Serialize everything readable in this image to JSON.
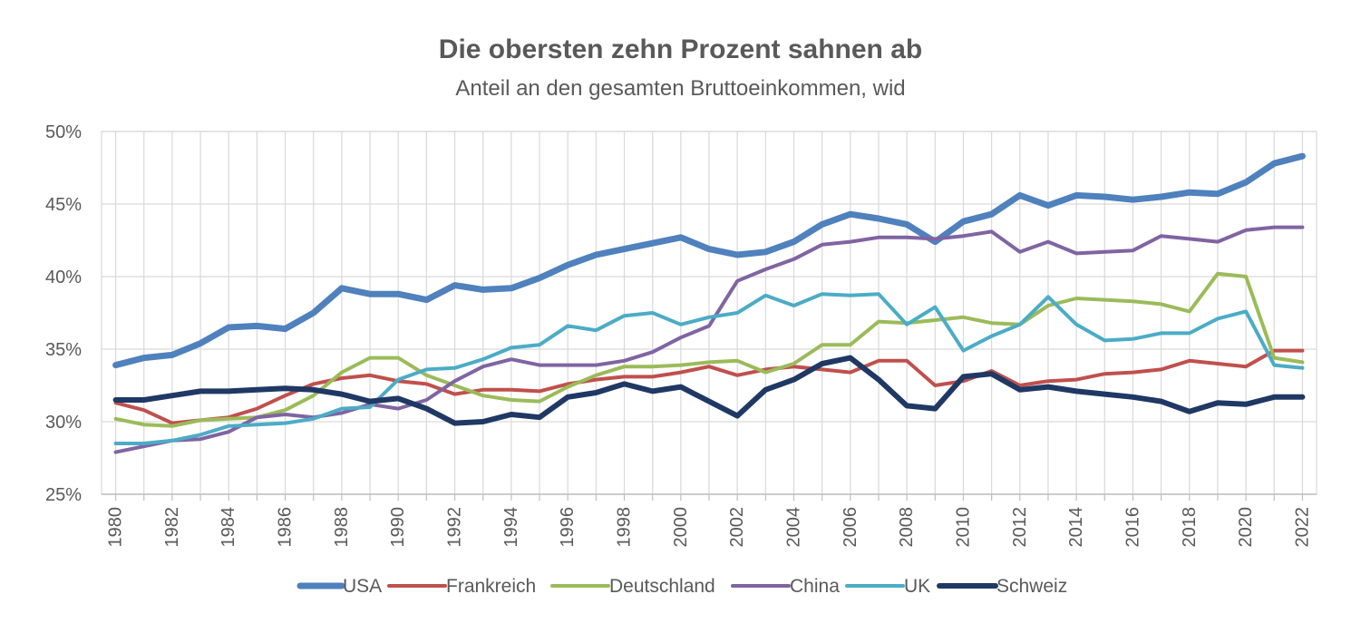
{
  "chart_data": {
    "type": "line",
    "title": "Die obersten zehn Prozent sahnen ab",
    "subtitle": "Anteil an den gesamten Bruttoeinkommen, wid",
    "xlabel": "",
    "ylabel": "",
    "x": [
      1980,
      1981,
      1982,
      1983,
      1984,
      1985,
      1986,
      1987,
      1988,
      1989,
      1990,
      1991,
      1992,
      1993,
      1994,
      1995,
      1996,
      1997,
      1998,
      1999,
      2000,
      2001,
      2002,
      2003,
      2004,
      2005,
      2006,
      2007,
      2008,
      2009,
      2010,
      2011,
      2012,
      2013,
      2014,
      2015,
      2016,
      2017,
      2018,
      2019,
      2020,
      2021,
      2022
    ],
    "xticks": [
      "1980",
      "1982",
      "1984",
      "1986",
      "1988",
      "1990",
      "1992",
      "1994",
      "1996",
      "1998",
      "2000",
      "2002",
      "2004",
      "2006",
      "2008",
      "2010",
      "2012",
      "2014",
      "2016",
      "2018",
      "2020",
      "2022"
    ],
    "ylim": [
      25,
      50
    ],
    "yticks": [
      25,
      30,
      35,
      40,
      45,
      50
    ],
    "ytick_labels": [
      "25%",
      "30%",
      "35%",
      "40%",
      "45%",
      "50%"
    ],
    "grid": true,
    "legend_position": "bottom",
    "series": [
      {
        "name": "USA",
        "color": "#4f81bd",
        "width": 7,
        "values": [
          33.9,
          34.4,
          34.6,
          35.4,
          36.5,
          36.6,
          36.4,
          37.5,
          39.2,
          38.8,
          38.8,
          38.4,
          39.4,
          39.1,
          39.2,
          39.9,
          40.8,
          41.5,
          41.9,
          42.3,
          42.7,
          41.9,
          41.5,
          41.7,
          42.4,
          43.6,
          44.3,
          44.0,
          43.6,
          42.4,
          43.8,
          44.3,
          45.6,
          44.9,
          45.6,
          45.5,
          45.3,
          45.5,
          45.8,
          45.7,
          46.5,
          47.8,
          48.3
        ]
      },
      {
        "name": "Frankreich",
        "color": "#c0504d",
        "width": 4,
        "values": [
          31.3,
          30.8,
          29.9,
          30.1,
          30.3,
          30.9,
          31.8,
          32.6,
          33.0,
          33.2,
          32.8,
          32.6,
          31.9,
          32.2,
          32.2,
          32.1,
          32.6,
          32.9,
          33.1,
          33.1,
          33.4,
          33.8,
          33.2,
          33.6,
          33.8,
          33.6,
          33.4,
          34.2,
          34.2,
          32.5,
          32.8,
          33.5,
          32.5,
          32.8,
          32.9,
          33.3,
          33.4,
          33.6,
          34.2,
          34.0,
          33.8,
          34.9,
          34.9
        ]
      },
      {
        "name": "Deutschland",
        "color": "#9bbb59",
        "width": 4,
        "values": [
          30.2,
          29.8,
          29.7,
          30.1,
          30.2,
          30.3,
          30.8,
          31.8,
          33.4,
          34.4,
          34.4,
          33.2,
          32.5,
          31.8,
          31.5,
          31.4,
          32.4,
          33.2,
          33.8,
          33.8,
          33.9,
          34.1,
          34.2,
          33.4,
          34.0,
          35.3,
          35.3,
          36.9,
          36.8,
          37.0,
          37.2,
          36.8,
          36.7,
          38.0,
          38.5,
          38.4,
          38.3,
          38.1,
          37.6,
          40.2,
          40.0,
          34.4,
          34.1
        ]
      },
      {
        "name": "China",
        "color": "#8064a2",
        "width": 4,
        "values": [
          27.9,
          28.3,
          28.7,
          28.8,
          29.3,
          30.3,
          30.5,
          30.3,
          30.6,
          31.2,
          30.9,
          31.5,
          32.8,
          33.8,
          34.3,
          33.9,
          33.9,
          33.9,
          34.2,
          34.8,
          35.8,
          36.6,
          39.7,
          40.5,
          41.2,
          42.2,
          42.4,
          42.7,
          42.7,
          42.6,
          42.8,
          43.1,
          41.7,
          42.4,
          41.6,
          41.7,
          41.8,
          42.8,
          42.6,
          42.4,
          43.2,
          43.4,
          43.4
        ]
      },
      {
        "name": "UK",
        "color": "#4bacc6",
        "width": 4,
        "values": [
          28.5,
          28.5,
          28.7,
          29.1,
          29.7,
          29.8,
          29.9,
          30.2,
          30.9,
          31.0,
          32.9,
          33.6,
          33.7,
          34.3,
          35.1,
          35.3,
          36.6,
          36.3,
          37.3,
          37.5,
          36.7,
          37.2,
          37.5,
          38.7,
          38.0,
          38.8,
          38.7,
          38.8,
          36.7,
          37.9,
          34.9,
          35.9,
          36.7,
          38.6,
          36.7,
          35.6,
          35.7,
          36.1,
          36.1,
          37.1,
          37.6,
          33.9,
          33.7
        ]
      },
      {
        "name": "Schweiz",
        "color": "#1f3864",
        "width": 6,
        "values": [
          31.5,
          31.5,
          31.8,
          32.1,
          32.1,
          32.2,
          32.3,
          32.2,
          31.9,
          31.4,
          31.6,
          30.9,
          29.9,
          30.0,
          30.5,
          30.3,
          31.7,
          32.0,
          32.6,
          32.1,
          32.4,
          31.4,
          30.4,
          32.2,
          32.9,
          34.0,
          34.4,
          32.9,
          31.1,
          30.9,
          33.1,
          33.3,
          32.2,
          32.4,
          32.1,
          31.9,
          31.7,
          31.4,
          30.7,
          31.3,
          31.2,
          31.7,
          31.7
        ]
      }
    ]
  }
}
